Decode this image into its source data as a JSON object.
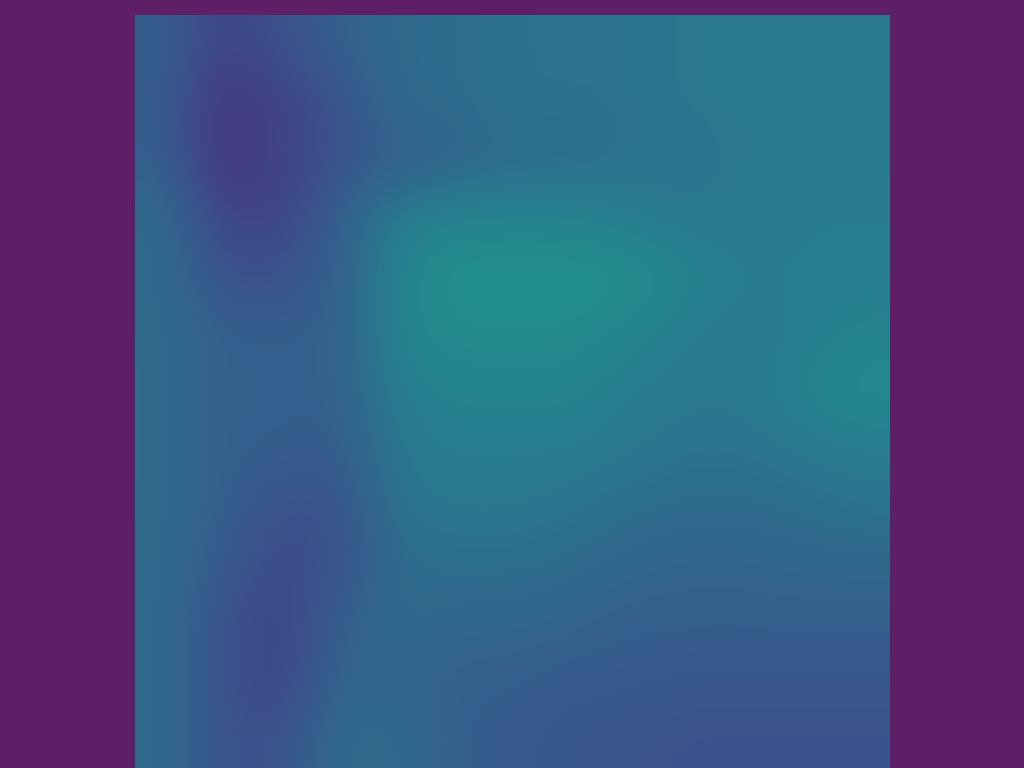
{
  "chart_data": {
    "type": "heatmap",
    "tick_labels": false,
    "grid": false,
    "color_range": [
      0,
      1
    ],
    "cells": [
      [
        0.3,
        0.2,
        0.25,
        0.3,
        0.35,
        0.35,
        0.38,
        0.38,
        0.38,
        0.4,
        0.4,
        0.4,
        0.4
      ],
      [
        0.3,
        0.15,
        0.2,
        0.25,
        0.35,
        0.35,
        0.38,
        0.38,
        0.38,
        0.4,
        0.4,
        0.4,
        0.4
      ],
      [
        0.3,
        0.15,
        0.2,
        0.25,
        0.3,
        0.32,
        0.35,
        0.35,
        0.38,
        0.38,
        0.4,
        0.4,
        0.4
      ],
      [
        0.35,
        0.2,
        0.2,
        0.3,
        0.42,
        0.45,
        0.45,
        0.45,
        0.42,
        0.4,
        0.4,
        0.42,
        0.42
      ],
      [
        0.35,
        0.25,
        0.25,
        0.3,
        0.45,
        0.5,
        0.5,
        0.5,
        0.5,
        0.45,
        0.42,
        0.42,
        0.42
      ],
      [
        0.35,
        0.3,
        0.3,
        0.3,
        0.45,
        0.48,
        0.48,
        0.48,
        0.45,
        0.42,
        0.4,
        0.42,
        0.45
      ],
      [
        0.35,
        0.3,
        0.3,
        0.3,
        0.42,
        0.45,
        0.45,
        0.45,
        0.42,
        0.4,
        0.4,
        0.45,
        0.48
      ],
      [
        0.35,
        0.3,
        0.3,
        0.28,
        0.4,
        0.42,
        0.42,
        0.42,
        0.4,
        0.38,
        0.38,
        0.4,
        0.42
      ],
      [
        0.35,
        0.3,
        0.25,
        0.25,
        0.38,
        0.4,
        0.4,
        0.38,
        0.36,
        0.35,
        0.35,
        0.36,
        0.38
      ],
      [
        0.35,
        0.28,
        0.22,
        0.25,
        0.35,
        0.36,
        0.36,
        0.35,
        0.33,
        0.32,
        0.32,
        0.33,
        0.33
      ],
      [
        0.35,
        0.25,
        0.2,
        0.3,
        0.35,
        0.33,
        0.33,
        0.32,
        0.3,
        0.3,
        0.3,
        0.3,
        0.3
      ],
      [
        0.35,
        0.25,
        0.2,
        0.32,
        0.33,
        0.3,
        0.3,
        0.28,
        0.28,
        0.27,
        0.27,
        0.27,
        0.27
      ],
      [
        0.35,
        0.25,
        0.25,
        0.35,
        0.35,
        0.3,
        0.28,
        0.27,
        0.26,
        0.25,
        0.25,
        0.25,
        0.25
      ]
    ]
  }
}
